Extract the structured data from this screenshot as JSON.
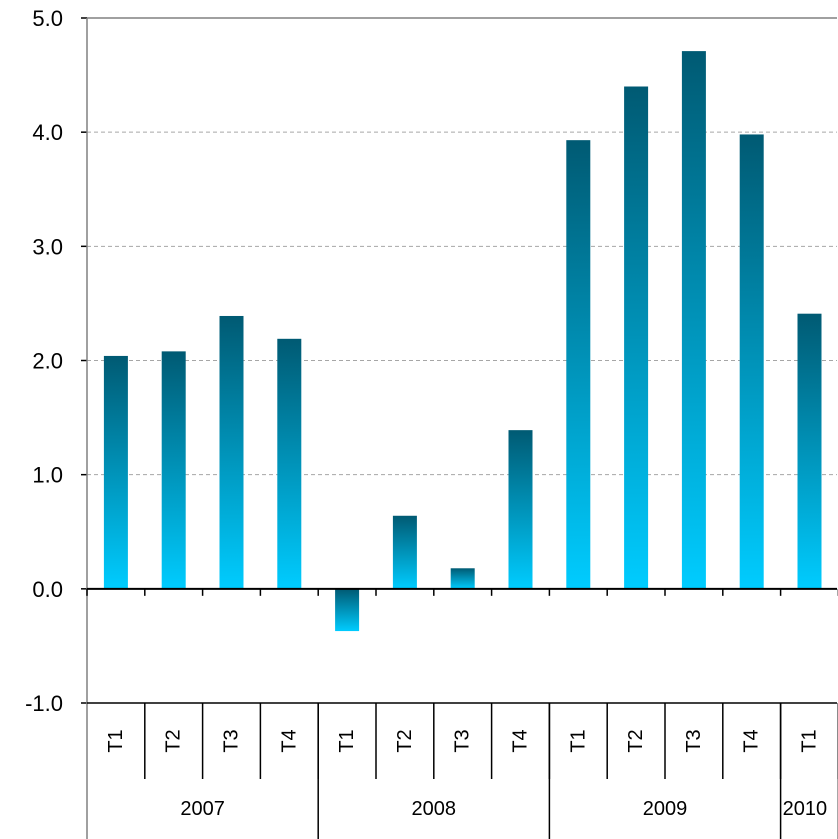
{
  "chart_data": {
    "type": "bar",
    "title": "",
    "xlabel": "",
    "ylabel": "",
    "ylim": [
      -1,
      5
    ],
    "yticks": [
      "-1.0",
      "0.0",
      "1.0",
      "2.0",
      "3.0",
      "4.0",
      "5.0"
    ],
    "grid": true,
    "categories": [
      "T1",
      "T2",
      "T3",
      "T4",
      "T1",
      "T2",
      "T3",
      "T4",
      "T1",
      "T2",
      "T3",
      "T4",
      "T1"
    ],
    "groups": [
      {
        "label": "2007",
        "count": 4
      },
      {
        "label": "2008",
        "count": 4
      },
      {
        "label": "2009",
        "count": 4
      },
      {
        "label": "2010",
        "count": 1
      }
    ],
    "values": [
      2.04,
      2.08,
      2.39,
      2.19,
      -0.37,
      0.64,
      0.18,
      1.39,
      3.93,
      4.4,
      4.71,
      3.98,
      2.41
    ],
    "colors": {
      "bar_top": "#005a73",
      "bar_bottom": "#00ccff",
      "grid": "#a6a6a6",
      "axis": "#000000"
    }
  }
}
